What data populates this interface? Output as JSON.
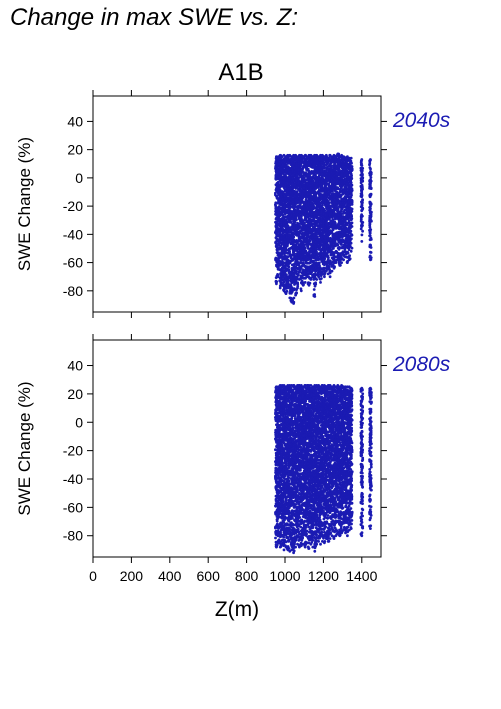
{
  "page_title": "Change in max SWE vs. Z:",
  "chart_data": [
    {
      "type": "scatter",
      "title": "A1B",
      "panel_label": "2040s",
      "ylabel": "SWE Change (%)",
      "xlabel": "",
      "xlim": [
        0,
        1500
      ],
      "ylim": [
        -95,
        58
      ],
      "xticks": [
        0,
        200,
        400,
        600,
        800,
        1000,
        1200,
        1400
      ],
      "yticks": [
        40,
        20,
        0,
        -20,
        -40,
        -60,
        -80
      ],
      "ytick_labels": [
        "40",
        "20",
        "0",
        "-20",
        "-40",
        "-60",
        "-80"
      ],
      "x_range_of_points": [
        950,
        1450
      ],
      "y_range_of_points": [
        -90,
        17
      ],
      "columns": [
        {
          "x": 955,
          "ymin": -75,
          "ymax": 15
        },
        {
          "x": 965,
          "ymin": -70,
          "ymax": 15
        },
        {
          "x": 975,
          "ymin": -78,
          "ymax": 16
        },
        {
          "x": 985,
          "ymin": -76,
          "ymax": 15
        },
        {
          "x": 995,
          "ymin": -80,
          "ymax": 16
        },
        {
          "x": 1005,
          "ymin": -82,
          "ymax": 15
        },
        {
          "x": 1015,
          "ymin": -78,
          "ymax": 16
        },
        {
          "x": 1025,
          "ymin": -85,
          "ymax": 16
        },
        {
          "x": 1035,
          "ymin": -88,
          "ymax": 15
        },
        {
          "x": 1045,
          "ymin": -89,
          "ymax": 16
        },
        {
          "x": 1055,
          "ymin": -83,
          "ymax": 16
        },
        {
          "x": 1065,
          "ymin": -78,
          "ymax": 15
        },
        {
          "x": 1075,
          "ymin": -72,
          "ymax": 16
        },
        {
          "x": 1085,
          "ymin": -80,
          "ymax": 16
        },
        {
          "x": 1095,
          "ymin": -76,
          "ymax": 15
        },
        {
          "x": 1105,
          "ymin": -74,
          "ymax": 16
        },
        {
          "x": 1115,
          "ymin": -70,
          "ymax": 15
        },
        {
          "x": 1125,
          "ymin": -76,
          "ymax": 16
        },
        {
          "x": 1135,
          "ymin": -72,
          "ymax": 16
        },
        {
          "x": 1145,
          "ymin": -70,
          "ymax": 15
        },
        {
          "x": 1155,
          "ymin": -84,
          "ymax": 16
        },
        {
          "x": 1165,
          "ymin": -72,
          "ymax": 16
        },
        {
          "x": 1175,
          "ymin": -70,
          "ymax": 15
        },
        {
          "x": 1185,
          "ymin": -74,
          "ymax": 16
        },
        {
          "x": 1195,
          "ymin": -68,
          "ymax": 16
        },
        {
          "x": 1205,
          "ymin": -70,
          "ymax": 15
        },
        {
          "x": 1215,
          "ymin": -66,
          "ymax": 16
        },
        {
          "x": 1225,
          "ymin": -68,
          "ymax": 14
        },
        {
          "x": 1235,
          "ymin": -70,
          "ymax": 16
        },
        {
          "x": 1245,
          "ymin": -66,
          "ymax": 15
        },
        {
          "x": 1255,
          "ymin": -64,
          "ymax": 16
        },
        {
          "x": 1265,
          "ymin": -60,
          "ymax": 15
        },
        {
          "x": 1275,
          "ymin": -58,
          "ymax": 17
        },
        {
          "x": 1285,
          "ymin": -62,
          "ymax": 15
        },
        {
          "x": 1295,
          "ymin": -60,
          "ymax": 16
        },
        {
          "x": 1305,
          "ymin": -58,
          "ymax": 15
        },
        {
          "x": 1315,
          "ymin": -56,
          "ymax": 14
        },
        {
          "x": 1325,
          "ymin": -60,
          "ymax": 15
        },
        {
          "x": 1335,
          "ymin": -58,
          "ymax": 14
        },
        {
          "x": 1345,
          "ymin": -52,
          "ymax": 14
        },
        {
          "x": 1400,
          "ymin": -45,
          "ymax": 13
        },
        {
          "x": 1445,
          "ymin": -58,
          "ymax": 13
        }
      ],
      "color": "#1b1bb3"
    },
    {
      "type": "scatter",
      "title": "",
      "panel_label": "2080s",
      "ylabel": "SWE Change (%)",
      "xlabel": "Z(m)",
      "xlim": [
        0,
        1500
      ],
      "ylim": [
        -95,
        58
      ],
      "xticks": [
        0,
        200,
        400,
        600,
        800,
        1000,
        1200,
        1400
      ],
      "xtick_labels": [
        "0",
        "200",
        "400",
        "600",
        "800",
        "1000",
        "1200",
        "1400"
      ],
      "yticks": [
        40,
        20,
        0,
        -20,
        -40,
        -60,
        -80
      ],
      "ytick_labels": [
        "40",
        "20",
        "0",
        "-20",
        "-40",
        "-60",
        "-80"
      ],
      "x_range_of_points": [
        950,
        1450
      ],
      "y_range_of_points": [
        -92,
        27
      ],
      "columns": [
        {
          "x": 955,
          "ymin": -88,
          "ymax": 25
        },
        {
          "x": 965,
          "ymin": -85,
          "ymax": 25
        },
        {
          "x": 975,
          "ymin": -88,
          "ymax": 26
        },
        {
          "x": 985,
          "ymin": -86,
          "ymax": 26
        },
        {
          "x": 995,
          "ymin": -90,
          "ymax": 26
        },
        {
          "x": 1005,
          "ymin": -88,
          "ymax": 25
        },
        {
          "x": 1015,
          "ymin": -90,
          "ymax": 26
        },
        {
          "x": 1025,
          "ymin": -91,
          "ymax": 26
        },
        {
          "x": 1035,
          "ymin": -90,
          "ymax": 26
        },
        {
          "x": 1045,
          "ymin": -92,
          "ymax": 26
        },
        {
          "x": 1055,
          "ymin": -88,
          "ymax": 25
        },
        {
          "x": 1065,
          "ymin": -86,
          "ymax": 26
        },
        {
          "x": 1075,
          "ymin": -88,
          "ymax": 26
        },
        {
          "x": 1085,
          "ymin": -87,
          "ymax": 26
        },
        {
          "x": 1095,
          "ymin": -86,
          "ymax": 25
        },
        {
          "x": 1105,
          "ymin": -88,
          "ymax": 26
        },
        {
          "x": 1115,
          "ymin": -85,
          "ymax": 26
        },
        {
          "x": 1125,
          "ymin": -89,
          "ymax": 26
        },
        {
          "x": 1135,
          "ymin": -86,
          "ymax": 26
        },
        {
          "x": 1145,
          "ymin": -88,
          "ymax": 25
        },
        {
          "x": 1155,
          "ymin": -91,
          "ymax": 26
        },
        {
          "x": 1165,
          "ymin": -86,
          "ymax": 26
        },
        {
          "x": 1175,
          "ymin": -84,
          "ymax": 26
        },
        {
          "x": 1185,
          "ymin": -86,
          "ymax": 25
        },
        {
          "x": 1195,
          "ymin": -84,
          "ymax": 26
        },
        {
          "x": 1205,
          "ymin": -85,
          "ymax": 26
        },
        {
          "x": 1215,
          "ymin": -82,
          "ymax": 25
        },
        {
          "x": 1225,
          "ymin": -84,
          "ymax": 26
        },
        {
          "x": 1235,
          "ymin": -82,
          "ymax": 26
        },
        {
          "x": 1245,
          "ymin": -80,
          "ymax": 25
        },
        {
          "x": 1255,
          "ymin": -82,
          "ymax": 26
        },
        {
          "x": 1265,
          "ymin": -80,
          "ymax": 25
        },
        {
          "x": 1275,
          "ymin": -78,
          "ymax": 26
        },
        {
          "x": 1285,
          "ymin": -80,
          "ymax": 25
        },
        {
          "x": 1295,
          "ymin": -78,
          "ymax": 26
        },
        {
          "x": 1305,
          "ymin": -76,
          "ymax": 25
        },
        {
          "x": 1315,
          "ymin": -78,
          "ymax": 25
        },
        {
          "x": 1325,
          "ymin": -80,
          "ymax": 25
        },
        {
          "x": 1335,
          "ymin": -76,
          "ymax": 25
        },
        {
          "x": 1345,
          "ymin": -75,
          "ymax": 24
        },
        {
          "x": 1400,
          "ymin": -80,
          "ymax": 24
        },
        {
          "x": 1445,
          "ymin": -75,
          "ymax": 24
        }
      ],
      "color": "#1b1bb3"
    }
  ]
}
